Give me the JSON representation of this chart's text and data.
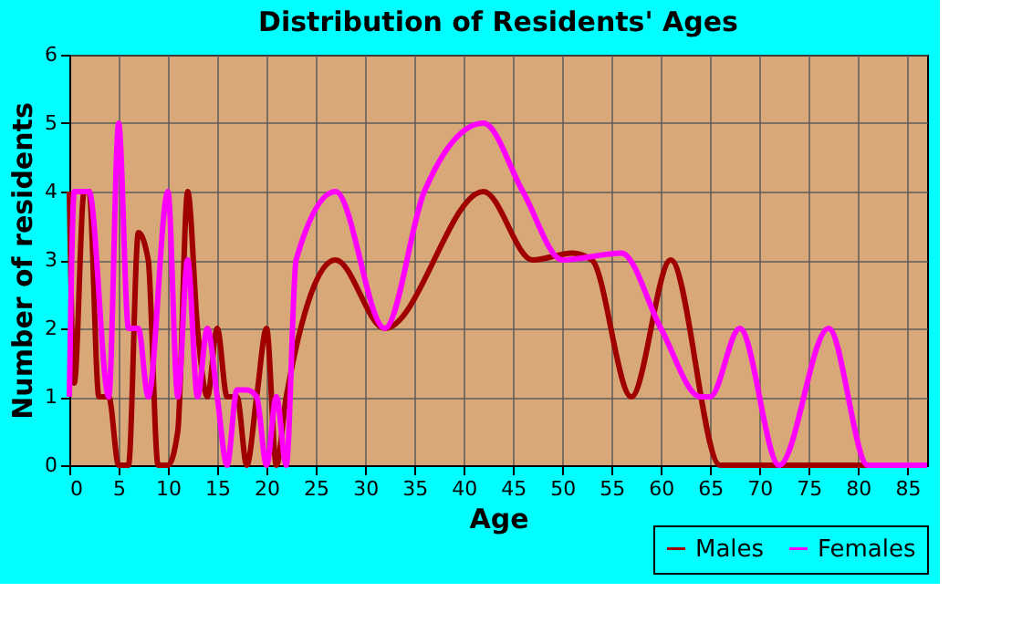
{
  "chart_data": {
    "type": "line",
    "title": "Distribution of Residents' Ages",
    "xlabel": "Age",
    "ylabel": "Number of residents",
    "xlim": [
      0,
      87
    ],
    "xticks": [
      0,
      5,
      10,
      15,
      20,
      25,
      30,
      35,
      40,
      45,
      50,
      55,
      60,
      65,
      70,
      75,
      80,
      85
    ],
    "ylim": [
      0,
      6
    ],
    "yticks": [
      0,
      1,
      2,
      3,
      4,
      5,
      6
    ],
    "grid": true,
    "legend": "bottom",
    "line_style": "solid",
    "marker": "none",
    "series": [
      {
        "name": "Males",
        "color": "#a00000",
        "x": [
          0,
          0.5,
          1.5,
          2,
          3,
          4,
          5,
          6,
          7,
          8,
          9,
          10,
          11,
          12,
          13,
          14,
          15,
          16,
          17,
          18,
          19,
          20,
          21,
          22,
          27,
          32,
          42,
          47,
          51,
          53,
          57,
          61,
          66,
          87
        ],
        "values": [
          4,
          1.2,
          4,
          4,
          1,
          1,
          0,
          0,
          3.4,
          3,
          0,
          0,
          0.5,
          4,
          2,
          1,
          2,
          1,
          1,
          0,
          1,
          2,
          0,
          1,
          3,
          2,
          4,
          3,
          3.1,
          3,
          1,
          3,
          0,
          0
        ]
      },
      {
        "name": "Females",
        "color": "#ff00ff",
        "x": [
          0,
          0.5,
          1.5,
          2,
          4,
          5,
          6,
          7,
          8,
          10,
          11,
          12,
          13,
          14,
          15,
          16,
          17,
          18,
          19,
          20,
          21,
          22,
          23,
          27,
          32,
          36,
          42,
          46,
          50,
          56,
          60,
          64,
          65,
          68,
          72,
          77,
          81,
          87
        ],
        "values": [
          1,
          4,
          4,
          4,
          1,
          5,
          2,
          2,
          1,
          4,
          1,
          3,
          1,
          2,
          1,
          0,
          1.1,
          1.1,
          1,
          0,
          1,
          0,
          3,
          4,
          2,
          4,
          5,
          4,
          3,
          3.1,
          2,
          1,
          1,
          2,
          0,
          2,
          0,
          0
        ]
      }
    ]
  }
}
